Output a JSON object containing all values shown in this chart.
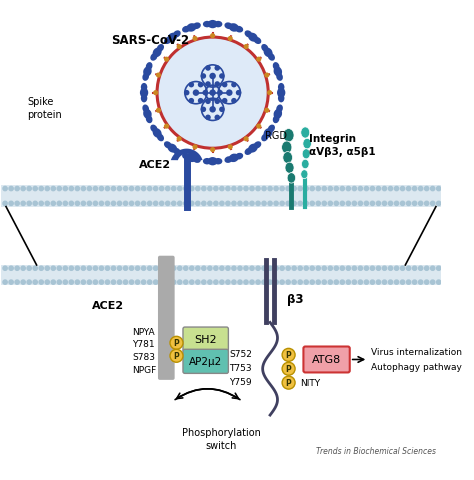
{
  "background_color": "#ffffff",
  "membrane_color": "#dce8f0",
  "membrane_dot_color": "#a8c4d4",
  "virus_circle_color": "#deeaf8",
  "virus_border_color": "#c03030",
  "spike_color": "#2a4a9f",
  "ace2_receptor_color": "#2a4a9f",
  "integrin_alpha_color": "#1a7a70",
  "integrin_beta_color": "#2aada0",
  "ace2_label": "ACE2",
  "integrin_label": "Integrin\nαVβ3, α5β1",
  "rgd_label": "RGD",
  "sars_label": "SARS-CoV-2",
  "spike_protein_label": "Spike\nprotein",
  "ace2_bottom_label": "ACE2",
  "beta3_label": "β3",
  "npya_label": "NPYA",
  "y781_label": "Y781",
  "s783_label": "S783",
  "npgf_label": "NPGF",
  "s752_label": "S752",
  "t753_label": "T753",
  "y759_label": "Y759",
  "nity_label": "NITY",
  "sh2_label": "SH2",
  "ap2mu2_label": "AP2μ2",
  "atg8_label": "ATG8",
  "phospho_switch_label": "Phosphorylation\nswitch",
  "virus_internalization_label": "Virus internalization",
  "autophagy_label": "Autophagy pathway",
  "trends_label": "Trends in Biochemical Sciences",
  "p_circle_color": "#f0c040",
  "p_circle_border": "#b89000",
  "sh2_box_color": "#c8e090",
  "sh2_box_border": "#888888",
  "ap2_box_color": "#60c0b0",
  "ap2_box_border": "#888888",
  "atg8_box_color": "#f0a0a8",
  "atg8_box_border": "#cc3333",
  "tmhelix_color": "#aaaaaa",
  "beta3_helix_color": "#404060"
}
